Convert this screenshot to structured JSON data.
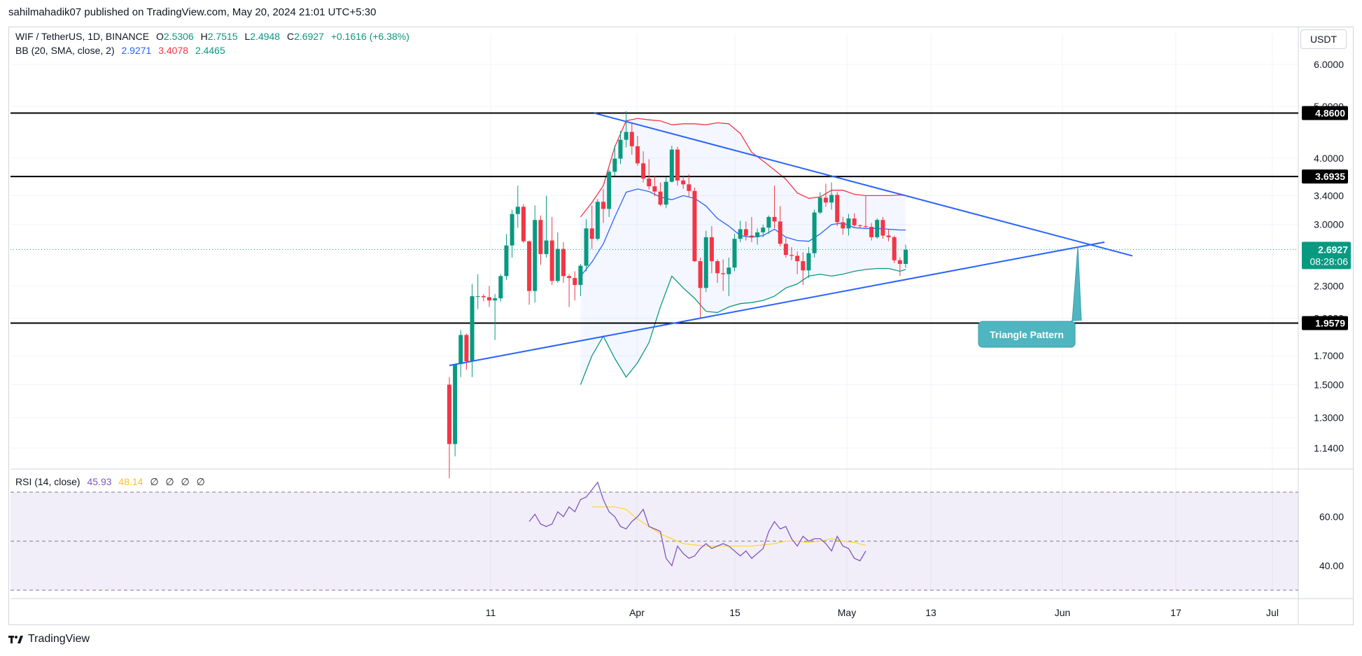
{
  "header": {
    "published": "sahilmahadik07 published on TradingView.com, May 20, 2024 21:01 UTC+5:30"
  },
  "legend": {
    "symbol": "WIF / TetherUS, 1D, BINANCE",
    "o_label": "O",
    "o_value": "2.5306",
    "h_label": "H",
    "h_value": "2.7515",
    "l_label": "L",
    "l_value": "2.4948",
    "c_label": "C",
    "c_value": "2.6927",
    "change": "+0.1616 (+6.38%)",
    "bb_label": "BB (20, SMA, close, 2)",
    "bb_basis": "2.9271",
    "bb_upper": "3.4078",
    "bb_lower": "2.4465",
    "rsi_label": "RSI (14, close)",
    "rsi_value": "45.93",
    "rsi_ma": "48.14",
    "rsi_extra": [
      "∅",
      "∅",
      "∅",
      "∅"
    ]
  },
  "currency": "USDT",
  "footer": {
    "brand": "TradingView"
  },
  "colors": {
    "up": "#089981",
    "down": "#f23645",
    "bb_basis": "#2962ff",
    "bb_upper": "#f23645",
    "bb_lower": "#089981",
    "trend": "#2962ff",
    "rsi": "#7e57c2",
    "rsi_ma": "#fdd835",
    "current_price": "#089981",
    "annotation": "#4db6c0"
  },
  "chart_data": {
    "type": "candlestick",
    "scale": "log",
    "y_ticks": [
      "6.0000",
      "5.0000",
      "4.0000",
      "3.4000",
      "3.0000",
      "2.3000",
      "2.0000",
      "1.7000",
      "1.5000",
      "1.3000",
      "1.1400"
    ],
    "x_ticks": [
      "11",
      "Apr",
      "15",
      "May",
      "13",
      "Jun",
      "17",
      "Jul"
    ],
    "price_labels": [
      {
        "price": "4.8600",
        "value": 4.86
      },
      {
        "price": "3.6935",
        "value": 3.6935
      },
      {
        "price": "1.9579",
        "value": 1.9579
      }
    ],
    "current": {
      "price": "2.6927",
      "countdown": "08:28:06",
      "value": 2.6927
    },
    "annotation": "Triangle Pattern",
    "candles": [
      [
        1.5,
        1.55,
        1.0,
        1.16
      ],
      [
        1.16,
        1.64,
        1.1,
        1.64
      ],
      [
        1.64,
        1.9,
        1.55,
        1.86
      ],
      [
        1.86,
        1.87,
        1.6,
        1.66
      ],
      [
        1.66,
        2.32,
        1.55,
        2.2
      ],
      [
        2.2,
        2.42,
        2.08,
        2.2
      ],
      [
        2.2,
        2.22,
        2.15,
        2.19
      ],
      [
        2.19,
        2.3,
        2.1,
        2.16
      ],
      [
        2.16,
        2.22,
        1.82,
        2.18
      ],
      [
        2.18,
        2.42,
        2.15,
        2.4
      ],
      [
        2.4,
        2.88,
        2.36,
        2.74
      ],
      [
        2.74,
        3.2,
        2.6,
        3.14
      ],
      [
        3.14,
        3.55,
        2.96,
        3.24
      ],
      [
        3.24,
        3.28,
        2.77,
        2.79
      ],
      [
        2.79,
        2.8,
        2.12,
        2.25
      ],
      [
        2.25,
        3.26,
        2.14,
        3.06
      ],
      [
        3.06,
        3.12,
        2.52,
        2.64
      ],
      [
        2.64,
        3.4,
        2.6,
        2.8
      ],
      [
        2.8,
        3.1,
        2.31,
        2.35
      ],
      [
        2.35,
        2.9,
        2.33,
        2.7
      ],
      [
        2.7,
        2.78,
        2.33,
        2.4
      ],
      [
        2.4,
        2.42,
        2.1,
        2.38
      ],
      [
        2.38,
        2.45,
        2.16,
        2.31
      ],
      [
        2.31,
        2.53,
        2.2,
        2.51
      ],
      [
        2.51,
        3.07,
        2.45,
        2.95
      ],
      [
        2.95,
        3.26,
        2.7,
        2.82
      ],
      [
        2.82,
        3.35,
        2.8,
        3.31
      ],
      [
        3.31,
        3.5,
        3.02,
        3.21
      ],
      [
        3.21,
        3.8,
        3.1,
        3.77
      ],
      [
        3.77,
        4.22,
        3.7,
        3.99
      ],
      [
        3.99,
        4.5,
        3.9,
        4.33
      ],
      [
        4.33,
        4.9,
        4.19,
        4.48
      ],
      [
        4.48,
        4.65,
        4.06,
        4.21
      ],
      [
        4.21,
        4.4,
        3.87,
        3.91
      ],
      [
        3.91,
        4.12,
        3.6,
        3.66
      ],
      [
        3.66,
        3.98,
        3.49,
        3.54
      ],
      [
        3.54,
        3.7,
        3.39,
        3.46
      ],
      [
        3.46,
        3.6,
        3.25,
        3.27
      ],
      [
        3.27,
        3.68,
        3.22,
        3.61
      ],
      [
        3.61,
        4.22,
        3.6,
        4.15
      ],
      [
        4.15,
        4.2,
        3.55,
        3.63
      ],
      [
        3.63,
        3.7,
        3.5,
        3.57
      ],
      [
        3.57,
        3.73,
        3.39,
        3.47
      ],
      [
        3.47,
        3.52,
        2.55,
        2.56
      ],
      [
        2.56,
        2.6,
        2.0,
        2.28
      ],
      [
        2.28,
        2.92,
        2.24,
        2.84
      ],
      [
        2.84,
        2.98,
        2.43,
        2.56
      ],
      [
        2.56,
        2.58,
        2.33,
        2.43
      ],
      [
        2.43,
        2.58,
        2.25,
        2.42
      ],
      [
        2.42,
        2.6,
        2.2,
        2.49
      ],
      [
        2.49,
        2.88,
        2.45,
        2.82
      ],
      [
        2.82,
        3.05,
        2.78,
        2.94
      ],
      [
        2.94,
        3.04,
        2.8,
        2.86
      ],
      [
        2.86,
        3.1,
        2.78,
        2.84
      ],
      [
        2.84,
        2.95,
        2.75,
        2.9
      ],
      [
        2.9,
        3.0,
        2.84,
        2.96
      ],
      [
        2.96,
        3.12,
        2.88,
        3.1
      ],
      [
        3.1,
        3.55,
        2.95,
        3.04
      ],
      [
        3.04,
        3.25,
        2.73,
        2.76
      ],
      [
        2.76,
        2.83,
        2.6,
        2.63
      ],
      [
        2.63,
        2.72,
        2.57,
        2.62
      ],
      [
        2.62,
        2.67,
        2.42,
        2.56
      ],
      [
        2.56,
        2.66,
        2.31,
        2.46
      ],
      [
        2.46,
        2.72,
        2.38,
        2.65
      ],
      [
        2.65,
        3.2,
        2.6,
        3.16
      ],
      [
        3.16,
        3.45,
        3.14,
        3.37
      ],
      [
        3.37,
        3.58,
        3.24,
        3.3
      ],
      [
        3.3,
        3.6,
        3.2,
        3.41
      ],
      [
        3.41,
        3.45,
        2.98,
        3.03
      ],
      [
        3.03,
        3.1,
        2.87,
        2.95
      ],
      [
        2.95,
        3.14,
        2.86,
        3.08
      ],
      [
        3.08,
        3.15,
        2.97,
        2.99
      ],
      [
        2.99,
        3.0,
        2.96,
        2.98
      ],
      [
        2.98,
        3.4,
        2.94,
        2.97
      ],
      [
        2.97,
        3.02,
        2.8,
        2.84
      ],
      [
        2.84,
        3.08,
        2.82,
        3.06
      ],
      [
        3.06,
        3.1,
        2.82,
        2.86
      ],
      [
        2.86,
        2.94,
        2.79,
        2.84
      ],
      [
        2.84,
        2.86,
        2.54,
        2.57
      ],
      [
        2.57,
        2.6,
        2.4,
        2.53
      ],
      [
        2.53,
        2.75,
        2.49,
        2.69
      ]
    ],
    "bb_basis": [
      [
        23,
        2.4
      ],
      [
        25,
        2.55
      ],
      [
        27,
        2.76
      ],
      [
        29,
        3.1
      ],
      [
        31,
        3.45
      ],
      [
        33,
        3.5
      ],
      [
        35,
        3.46
      ],
      [
        37,
        3.38
      ],
      [
        39,
        3.34
      ],
      [
        41,
        3.4
      ],
      [
        43,
        3.36
      ],
      [
        45,
        3.25
      ],
      [
        47,
        3.08
      ],
      [
        49,
        2.98
      ],
      [
        51,
        2.86
      ],
      [
        53,
        2.84
      ],
      [
        55,
        2.86
      ],
      [
        57,
        2.94
      ],
      [
        59,
        2.84
      ],
      [
        61,
        2.8
      ],
      [
        63,
        2.79
      ],
      [
        65,
        2.88
      ],
      [
        67,
        3.0
      ],
      [
        69,
        3.02
      ],
      [
        71,
        2.96
      ],
      [
        73,
        2.95
      ],
      [
        75,
        2.95
      ],
      [
        77,
        2.94
      ],
      [
        79,
        2.93
      ],
      [
        80,
        2.93
      ]
    ],
    "bb_upper": [
      [
        23,
        3.1
      ],
      [
        25,
        3.3
      ],
      [
        27,
        3.55
      ],
      [
        29,
        4.2
      ],
      [
        31,
        4.7
      ],
      [
        33,
        4.75
      ],
      [
        35,
        4.72
      ],
      [
        37,
        4.7
      ],
      [
        39,
        4.62
      ],
      [
        41,
        4.64
      ],
      [
        43,
        4.64
      ],
      [
        45,
        4.62
      ],
      [
        47,
        4.66
      ],
      [
        49,
        4.64
      ],
      [
        51,
        4.45
      ],
      [
        53,
        4.1
      ],
      [
        55,
        3.95
      ],
      [
        57,
        3.8
      ],
      [
        59,
        3.65
      ],
      [
        61,
        3.44
      ],
      [
        63,
        3.36
      ],
      [
        65,
        3.38
      ],
      [
        67,
        3.48
      ],
      [
        69,
        3.48
      ],
      [
        71,
        3.42
      ],
      [
        73,
        3.4
      ],
      [
        75,
        3.4
      ],
      [
        77,
        3.4
      ],
      [
        79,
        3.41
      ],
      [
        80,
        3.4
      ]
    ],
    "bb_lower": [
      [
        23,
        1.5
      ],
      [
        25,
        1.7
      ],
      [
        27,
        1.85
      ],
      [
        29,
        1.68
      ],
      [
        31,
        1.55
      ],
      [
        33,
        1.65
      ],
      [
        35,
        1.8
      ],
      [
        37,
        2.1
      ],
      [
        39,
        2.4
      ],
      [
        41,
        2.28
      ],
      [
        43,
        2.18
      ],
      [
        45,
        2.06
      ],
      [
        47,
        2.05
      ],
      [
        49,
        2.1
      ],
      [
        51,
        2.13
      ],
      [
        53,
        2.14
      ],
      [
        55,
        2.16
      ],
      [
        57,
        2.2
      ],
      [
        59,
        2.28
      ],
      [
        61,
        2.32
      ],
      [
        63,
        2.4
      ],
      [
        65,
        2.42
      ],
      [
        67,
        2.4
      ],
      [
        69,
        2.42
      ],
      [
        71,
        2.45
      ],
      [
        73,
        2.47
      ],
      [
        75,
        2.48
      ],
      [
        77,
        2.48
      ],
      [
        79,
        2.45
      ],
      [
        80,
        2.47
      ]
    ],
    "rsi": [
      [
        14,
        58
      ],
      [
        15,
        61
      ],
      [
        16,
        57
      ],
      [
        17,
        56
      ],
      [
        18,
        57
      ],
      [
        19,
        62
      ],
      [
        20,
        60
      ],
      [
        21,
        64
      ],
      [
        22,
        62
      ],
      [
        23,
        67
      ],
      [
        24,
        68
      ],
      [
        25,
        71
      ],
      [
        26,
        74
      ],
      [
        27,
        67
      ],
      [
        28,
        62
      ],
      [
        29,
        60
      ],
      [
        30,
        56
      ],
      [
        31,
        55
      ],
      [
        32,
        58
      ],
      [
        33,
        60
      ],
      [
        34,
        63
      ],
      [
        35,
        56
      ],
      [
        36,
        55
      ],
      [
        37,
        54
      ],
      [
        38,
        43
      ],
      [
        39,
        40
      ],
      [
        40,
        48
      ],
      [
        41,
        45
      ],
      [
        42,
        43
      ],
      [
        43,
        44
      ],
      [
        44,
        47
      ],
      [
        45,
        49
      ],
      [
        46,
        47
      ],
      [
        47,
        48
      ],
      [
        48,
        49
      ],
      [
        49,
        48
      ],
      [
        50,
        46
      ],
      [
        51,
        44
      ],
      [
        52,
        46
      ],
      [
        53,
        43
      ],
      [
        54,
        45
      ],
      [
        55,
        47
      ],
      [
        56,
        54
      ],
      [
        57,
        58
      ],
      [
        58,
        55
      ],
      [
        59,
        56
      ],
      [
        60,
        51
      ],
      [
        61,
        48
      ],
      [
        62,
        52
      ],
      [
        63,
        50
      ],
      [
        64,
        51
      ],
      [
        65,
        51
      ],
      [
        66,
        49
      ],
      [
        67,
        46
      ],
      [
        68,
        52
      ],
      [
        69,
        48
      ],
      [
        70,
        47
      ],
      [
        71,
        43
      ],
      [
        72,
        42
      ],
      [
        73,
        46
      ]
    ],
    "rsi_ma": [
      [
        25,
        64
      ],
      [
        27,
        64
      ],
      [
        29,
        64
      ],
      [
        31,
        63
      ],
      [
        33,
        59
      ],
      [
        35,
        56
      ],
      [
        37,
        53
      ],
      [
        39,
        51
      ],
      [
        41,
        49
      ],
      [
        43,
        48.5
      ],
      [
        45,
        48
      ],
      [
        47,
        48
      ],
      [
        49,
        48
      ],
      [
        51,
        48
      ],
      [
        53,
        48
      ],
      [
        55,
        48.5
      ],
      [
        57,
        49
      ],
      [
        59,
        50
      ],
      [
        61,
        50
      ],
      [
        63,
        49.5
      ],
      [
        65,
        50
      ],
      [
        67,
        51
      ],
      [
        69,
        50
      ],
      [
        71,
        49.5
      ],
      [
        73,
        48.3
      ]
    ],
    "rsi_levels": {
      "upper": 70,
      "middle": 50,
      "lower": 30
    },
    "rsi_ticks": [
      "60.00",
      "40.00"
    ]
  }
}
